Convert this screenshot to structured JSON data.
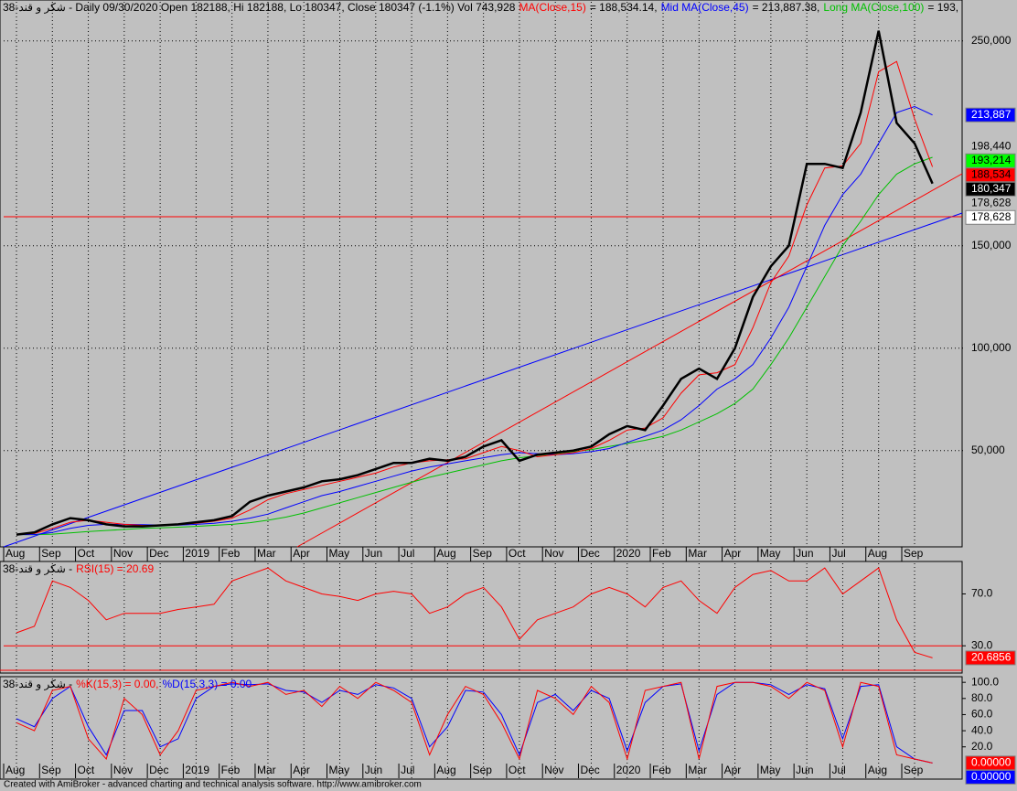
{
  "chart_data": [
    {
      "type": "line",
      "title_parts": [
        {
          "text": "38-شکر و قند - Daily 09/30/2020 Open 182188, Hi 182188, Lo 180347, Close 180347 (-1.1%) Vol 743,928",
          "color": "#000000"
        },
        {
          "text": "MA(Close,15)",
          "color": "#ff0000"
        },
        {
          "text": "= 188,534.14,",
          "color": "#000000"
        },
        {
          "text": "Mid MA(Close,45)",
          "color": "#0000ff"
        },
        {
          "text": "= 213,887.38,",
          "color": "#000000"
        },
        {
          "text": "Long MA(Close,100)",
          "color": "#00c000"
        },
        {
          "text": "= 193,",
          "color": "#000000"
        }
      ],
      "categories": [
        "Aug",
        null,
        "Sep",
        null,
        "Oct",
        null,
        "Nov",
        null,
        "Dec",
        null,
        "2019",
        null,
        "Feb",
        null,
        "Mar",
        null,
        "Apr",
        null,
        "May",
        null,
        "Jun",
        null,
        "Jul",
        null,
        "Aug",
        null,
        "Sep",
        null,
        "Oct",
        null,
        "Nov",
        null,
        "Dec",
        null,
        "2020",
        null,
        "Feb",
        null,
        "Mar",
        null,
        "Apr",
        null,
        "May",
        null,
        "Jun",
        null,
        "Jul",
        null,
        "Aug",
        null,
        "Sep",
        null
      ],
      "series": [
        {
          "color": "#000000",
          "width": 2.5,
          "values": [
            9000,
            10000,
            14000,
            17000,
            16000,
            14000,
            13000,
            13000,
            13500,
            14000,
            15000,
            16000,
            18000,
            25000,
            28000,
            30000,
            32000,
            35000,
            36000,
            38000,
            41000,
            44000,
            44000,
            46000,
            45000,
            47000,
            52000,
            55000,
            45000,
            48000,
            49000,
            50000,
            52000,
            58000,
            62000,
            60000,
            72000,
            85000,
            90000,
            85000,
            100000,
            125000,
            140000,
            150000,
            190000,
            190000,
            188000,
            215000,
            255000,
            210000,
            200000,
            180347
          ]
        },
        {
          "color": "#ff0000",
          "width": 1,
          "values": [
            9000,
            9500,
            12000,
            15000,
            16000,
            15000,
            14000,
            13500,
            13500,
            13800,
            14500,
            15500,
            17000,
            21000,
            26000,
            29000,
            31000,
            33000,
            35000,
            37000,
            39000,
            42000,
            44000,
            45000,
            45500,
            46000,
            49000,
            52000,
            50000,
            47000,
            48000,
            49000,
            51000,
            55000,
            60000,
            61000,
            66000,
            78000,
            87000,
            88000,
            92000,
            110000,
            132000,
            145000,
            170000,
            188000,
            189000,
            200000,
            235000,
            240000,
            212000,
            188534
          ]
        },
        {
          "color": "#0000ff",
          "width": 1,
          "values": [
            9000,
            9000,
            10000,
            12000,
            13500,
            14000,
            14000,
            13800,
            13600,
            13600,
            14000,
            14500,
            15500,
            17000,
            19000,
            22000,
            25000,
            28000,
            30000,
            32500,
            35000,
            37500,
            40000,
            42000,
            43500,
            45000,
            46500,
            48000,
            49000,
            48500,
            48000,
            48500,
            49500,
            51000,
            54000,
            57000,
            60000,
            65000,
            72000,
            80000,
            85000,
            92000,
            105000,
            120000,
            140000,
            160000,
            175000,
            185000,
            200000,
            215000,
            218000,
            213887
          ]
        },
        {
          "color": "#00c000",
          "width": 1,
          "values": [
            9000,
            9000,
            9200,
            9800,
            10500,
            11000,
            11500,
            12000,
            12300,
            12600,
            13000,
            13500,
            14000,
            14800,
            16000,
            17500,
            19500,
            22000,
            24500,
            27000,
            29500,
            32000,
            34500,
            37000,
            39000,
            41000,
            43000,
            45000,
            46500,
            47500,
            48500,
            49500,
            50500,
            52000,
            53500,
            55000,
            57000,
            60000,
            64000,
            68000,
            73000,
            80000,
            92000,
            105000,
            120000,
            135000,
            150000,
            162000,
            175000,
            185000,
            190000,
            193214
          ]
        }
      ],
      "ylim": [
        3000,
        270000
      ],
      "yticks": [
        {
          "value": 50000,
          "label": "50,000"
        },
        {
          "value": 100000,
          "label": "100,000"
        },
        {
          "value": 150000,
          "label": "150,000"
        },
        {
          "value": 250000,
          "label": "250,000"
        }
      ],
      "grid": true,
      "price_labels": [
        {
          "value": 213887,
          "label": "213,887",
          "color": "#0000ff",
          "text_color": "#ffffff"
        },
        {
          "value": 198440,
          "label": "198,440"
        },
        {
          "value": 193214,
          "label": "193,214",
          "color": "#00ff00",
          "text_color": "#000000"
        },
        {
          "value": 188534,
          "label": "188,534",
          "color": "#ff0000",
          "text_color": "#000000"
        },
        {
          "value": 180347,
          "label": "180,347",
          "color": "#000000",
          "text_color": "#ffffff"
        },
        {
          "value": 178628,
          "label": "178,628"
        },
        {
          "value": 178628,
          "label": "178,628",
          "color": "#ffffff",
          "text_color": "#000000"
        }
      ]
    },
    {
      "type": "line",
      "title_parts": [
        {
          "text": "38-شکر و قند -",
          "color": "#000000"
        },
        {
          "text": "RSI(15) = 20.69",
          "color": "#ff0000"
        }
      ],
      "color": "#ff0000",
      "values": [
        40,
        45,
        80,
        75,
        65,
        50,
        55,
        55,
        55,
        58,
        60,
        62,
        80,
        85,
        90,
        80,
        75,
        70,
        68,
        65,
        70,
        72,
        70,
        55,
        60,
        70,
        75,
        60,
        35,
        50,
        55,
        60,
        70,
        75,
        70,
        60,
        75,
        80,
        65,
        55,
        75,
        85,
        88,
        80,
        80,
        90,
        70,
        80,
        90,
        50,
        25,
        20.69
      ],
      "ylim": [
        9,
        95
      ],
      "yticks": [
        {
          "value": 70,
          "label": "70.0"
        },
        {
          "value": 30,
          "label": "30.0"
        }
      ],
      "hlines": [
        {
          "value": 30,
          "color": "#ff0000"
        }
      ],
      "price_labels": [
        {
          "value": 20.6856,
          "label": "20.6856",
          "color": "#ff0000",
          "text_color": "#ffffff"
        }
      ]
    },
    {
      "type": "line",
      "title_parts": [
        {
          "text": "38-شکر و قند -",
          "color": "#000000"
        },
        {
          "text": "%K(15,3) = 0.00,",
          "color": "#ff0000"
        },
        {
          "text": "%D(15,3,3) = 0.00",
          "color": "#0000ff"
        }
      ],
      "categories": [
        "Aug",
        null,
        "Sep",
        null,
        "Oct",
        null,
        "Nov",
        null,
        "Dec",
        null,
        "2019",
        null,
        "Feb",
        null,
        "Mar",
        null,
        "Apr",
        null,
        "May",
        null,
        "Jun",
        null,
        "Jul",
        null,
        "Aug",
        null,
        "Sep",
        null,
        "Oct",
        null,
        "Nov",
        null,
        "Dec",
        null,
        "2020",
        null,
        "Feb",
        null,
        "Mar",
        null,
        "Apr",
        null,
        "May",
        null,
        "Jun",
        null,
        "Jul",
        null,
        "Aug",
        null,
        "Sep",
        null
      ],
      "series": [
        {
          "color": "#ff0000",
          "width": 1,
          "values": [
            50,
            40,
            90,
            95,
            30,
            5,
            80,
            60,
            10,
            40,
            90,
            95,
            100,
            95,
            100,
            85,
            90,
            70,
            95,
            80,
            100,
            90,
            75,
            10,
            60,
            95,
            85,
            50,
            5,
            90,
            80,
            60,
            95,
            75,
            5,
            90,
            95,
            100,
            5,
            95,
            100,
            100,
            95,
            80,
            100,
            90,
            20,
            100,
            95,
            10,
            5,
            0
          ]
        },
        {
          "color": "#0000ff",
          "width": 1,
          "values": [
            55,
            45,
            80,
            95,
            45,
            10,
            65,
            65,
            20,
            30,
            80,
            95,
            98,
            97,
            98,
            90,
            88,
            75,
            90,
            85,
            97,
            93,
            80,
            20,
            45,
            90,
            88,
            60,
            10,
            75,
            85,
            65,
            90,
            80,
            15,
            75,
            95,
            98,
            15,
            85,
            100,
            100,
            97,
            85,
            97,
            92,
            30,
            95,
            97,
            20,
            5,
            0
          ]
        }
      ],
      "ylim": [
        -20,
        107
      ],
      "yticks": [
        {
          "value": 100,
          "label": "100.0"
        },
        {
          "value": 80,
          "label": "80.0"
        },
        {
          "value": 60,
          "label": "60.0"
        },
        {
          "value": 40,
          "label": "40.0"
        },
        {
          "value": 20,
          "label": "20.0"
        }
      ],
      "price_labels": [
        {
          "value": 0,
          "label": "0.00000",
          "color": "#ff0000",
          "text_color": "#ffffff"
        },
        {
          "value": 0,
          "label": "0.00000",
          "color": "#0000ff",
          "text_color": "#ffffff"
        }
      ]
    }
  ],
  "footer": "Created with AmiBroker - advanced charting and technical analysis software. http://www.amibroker.com"
}
